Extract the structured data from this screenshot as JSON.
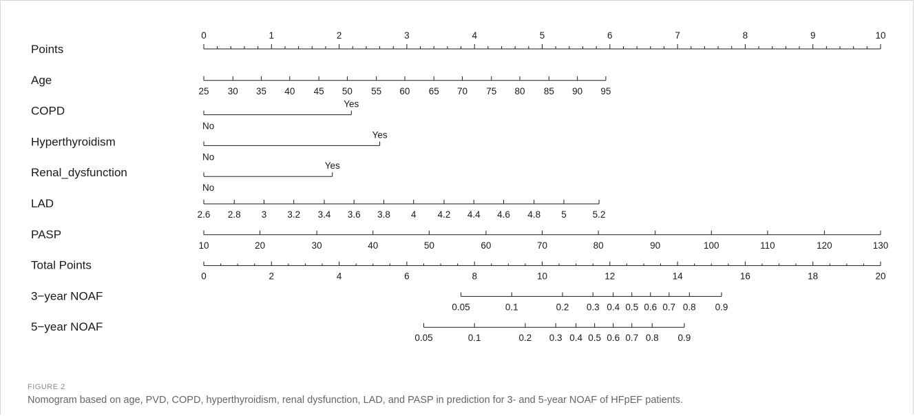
{
  "figure": {
    "label": "FIGURE 2",
    "caption": "Nomogram based on age, PVD, COPD, hyperthyroidism, renal dysfunction, LAD, and PASP in prediction for 3- and 5-year NOAF of HFpEF patients."
  },
  "chart_data": {
    "type": "nomogram",
    "points_range": [
      0,
      10
    ],
    "total_points_range": [
      0,
      20
    ],
    "variables": [
      {
        "name": "Points",
        "kind": "points",
        "ticks": [
          {
            "label": "0",
            "value": 0
          },
          {
            "label": "1",
            "value": 1
          },
          {
            "label": "2",
            "value": 2
          },
          {
            "label": "3",
            "value": 3
          },
          {
            "label": "4",
            "value": 4
          },
          {
            "label": "5",
            "value": 5
          },
          {
            "label": "6",
            "value": 6
          },
          {
            "label": "7",
            "value": 7
          },
          {
            "label": "8",
            "value": 8
          },
          {
            "label": "9",
            "value": 9
          },
          {
            "label": "10",
            "value": 10
          }
        ],
        "minor_step": 0.2,
        "labels_above": true
      },
      {
        "name": "Age",
        "kind": "continuous",
        "ticks": [
          {
            "label": "25",
            "points": 0
          },
          {
            "label": "30",
            "points": 0.43
          },
          {
            "label": "35",
            "points": 0.85
          },
          {
            "label": "40",
            "points": 1.27
          },
          {
            "label": "45",
            "points": 1.7
          },
          {
            "label": "50",
            "points": 2.12
          },
          {
            "label": "55",
            "points": 2.55
          },
          {
            "label": "60",
            "points": 2.97
          },
          {
            "label": "65",
            "points": 3.4
          },
          {
            "label": "70",
            "points": 3.82
          },
          {
            "label": "75",
            "points": 4.25
          },
          {
            "label": "80",
            "points": 4.67
          },
          {
            "label": "85",
            "points": 5.1
          },
          {
            "label": "90",
            "points": 5.52
          },
          {
            "label": "95",
            "points": 5.94
          }
        ]
      },
      {
        "name": "COPD",
        "kind": "binary",
        "levels": [
          {
            "label": "No",
            "points": 0,
            "label_position": "below"
          },
          {
            "label": "Yes",
            "points": 2.18,
            "label_position": "above"
          }
        ]
      },
      {
        "name": "Hyperthyroidism",
        "kind": "binary",
        "levels": [
          {
            "label": "No",
            "points": 0,
            "label_position": "below"
          },
          {
            "label": "Yes",
            "points": 2.6,
            "label_position": "above"
          }
        ]
      },
      {
        "name": "Renal_dysfunction",
        "kind": "binary",
        "levels": [
          {
            "label": "No",
            "points": 0,
            "label_position": "below"
          },
          {
            "label": "Yes",
            "points": 1.9,
            "label_position": "above"
          }
        ]
      },
      {
        "name": "LAD",
        "kind": "continuous",
        "ticks": [
          {
            "label": "2.6",
            "points": 0
          },
          {
            "label": "2.8",
            "points": 0.45
          },
          {
            "label": "3",
            "points": 0.89
          },
          {
            "label": "3.2",
            "points": 1.33
          },
          {
            "label": "3.4",
            "points": 1.78
          },
          {
            "label": "3.6",
            "points": 2.22
          },
          {
            "label": "3.8",
            "points": 2.66
          },
          {
            "label": "4",
            "points": 3.1
          },
          {
            "label": "4.2",
            "points": 3.55
          },
          {
            "label": "4.4",
            "points": 3.99
          },
          {
            "label": "4.6",
            "points": 4.43
          },
          {
            "label": "4.8",
            "points": 4.88
          },
          {
            "label": "5",
            "points": 5.32
          },
          {
            "label": "5.2",
            "points": 5.84
          }
        ]
      },
      {
        "name": "PASP",
        "kind": "continuous",
        "ticks": [
          {
            "label": "10",
            "points": 0
          },
          {
            "label": "20",
            "points": 0.83
          },
          {
            "label": "30",
            "points": 1.67
          },
          {
            "label": "40",
            "points": 2.5
          },
          {
            "label": "50",
            "points": 3.33
          },
          {
            "label": "60",
            "points": 4.17
          },
          {
            "label": "70",
            "points": 5.0
          },
          {
            "label": "80",
            "points": 5.83
          },
          {
            "label": "90",
            "points": 6.67
          },
          {
            "label": "100",
            "points": 7.5
          },
          {
            "label": "110",
            "points": 8.33
          },
          {
            "label": "120",
            "points": 9.17
          },
          {
            "label": "130",
            "points": 10
          }
        ]
      },
      {
        "name": "Total Points",
        "kind": "total",
        "ticks": [
          {
            "label": "0",
            "total": 0
          },
          {
            "label": "2",
            "total": 2
          },
          {
            "label": "4",
            "total": 4
          },
          {
            "label": "6",
            "total": 6
          },
          {
            "label": "8",
            "total": 8
          },
          {
            "label": "10",
            "total": 10
          },
          {
            "label": "12",
            "total": 12
          },
          {
            "label": "14",
            "total": 14
          },
          {
            "label": "16",
            "total": 16
          },
          {
            "label": "18",
            "total": 18
          },
          {
            "label": "20",
            "total": 20
          }
        ],
        "minor_step": 0.5
      },
      {
        "name": "3−year NOAF",
        "kind": "probability",
        "ticks": [
          {
            "label": "0.05",
            "total": 7.6
          },
          {
            "label": "0.1",
            "total": 9.1
          },
          {
            "label": "0.2",
            "total": 10.6
          },
          {
            "label": "0.3",
            "total": 11.5
          },
          {
            "label": "0.4",
            "total": 12.1
          },
          {
            "label": "0.5",
            "total": 12.65
          },
          {
            "label": "0.6",
            "total": 13.2
          },
          {
            "label": "0.7",
            "total": 13.75
          },
          {
            "label": "0.8",
            "total": 14.35
          },
          {
            "label": "0.9",
            "total": 15.3
          }
        ]
      },
      {
        "name": "5−year NOAF",
        "kind": "probability",
        "ticks": [
          {
            "label": "0.05",
            "total": 6.5
          },
          {
            "label": "0.1",
            "total": 8.0
          },
          {
            "label": "0.2",
            "total": 9.5
          },
          {
            "label": "0.3",
            "total": 10.4
          },
          {
            "label": "0.4",
            "total": 11.0
          },
          {
            "label": "0.5",
            "total": 11.55
          },
          {
            "label": "0.6",
            "total": 12.1
          },
          {
            "label": "0.7",
            "total": 12.65
          },
          {
            "label": "0.8",
            "total": 13.25
          },
          {
            "label": "0.9",
            "total": 14.2
          }
        ]
      }
    ]
  }
}
